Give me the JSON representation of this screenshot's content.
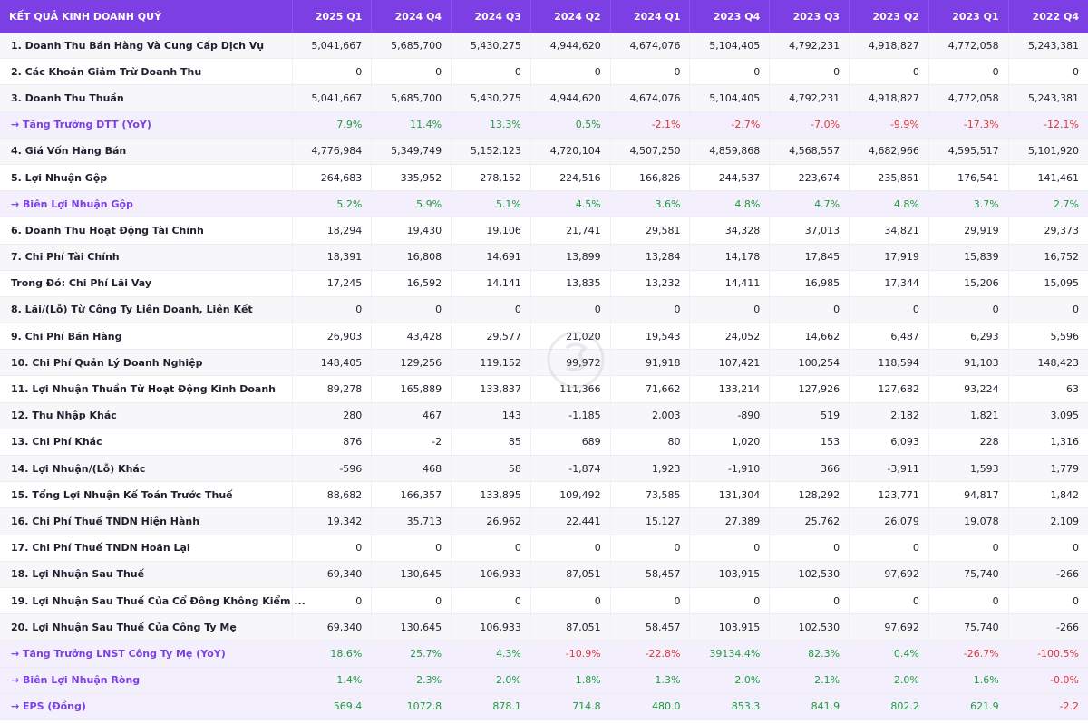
{
  "table": {
    "header_label": "KẾT QUẢ KINH DOANH QUÝ",
    "columns": [
      "2025 Q1",
      "2024 Q4",
      "2024 Q3",
      "2024 Q2",
      "2024 Q1",
      "2023 Q4",
      "2023 Q3",
      "2023 Q2",
      "2023 Q1",
      "2022 Q4"
    ],
    "rows": [
      {
        "label": "1. Doanh Thu Bán Hàng Và Cung Cấp Dịch Vụ",
        "type": "normal",
        "values": [
          "5,041,667",
          "5,685,700",
          "5,430,275",
          "4,944,620",
          "4,674,076",
          "5,104,405",
          "4,792,231",
          "4,918,827",
          "4,772,058",
          "5,243,381"
        ]
      },
      {
        "label": "2. Các Khoản Giảm Trừ Doanh Thu",
        "type": "normal",
        "values": [
          "0",
          "0",
          "0",
          "0",
          "0",
          "0",
          "0",
          "0",
          "0",
          "0"
        ]
      },
      {
        "label": "3. Doanh Thu Thuần",
        "type": "normal",
        "values": [
          "5,041,667",
          "5,685,700",
          "5,430,275",
          "4,944,620",
          "4,674,076",
          "5,104,405",
          "4,792,231",
          "4,918,827",
          "4,772,058",
          "5,243,381"
        ]
      },
      {
        "label": "→ Tăng Trưởng DTT (YoY)",
        "type": "ratio",
        "values": [
          "7.9%",
          "11.4%",
          "13.3%",
          "0.5%",
          "-2.1%",
          "-2.7%",
          "-7.0%",
          "-9.9%",
          "-17.3%",
          "-12.1%"
        ]
      },
      {
        "label": "4. Giá Vốn Hàng Bán",
        "type": "normal",
        "values": [
          "4,776,984",
          "5,349,749",
          "5,152,123",
          "4,720,104",
          "4,507,250",
          "4,859,868",
          "4,568,557",
          "4,682,966",
          "4,595,517",
          "5,101,920"
        ]
      },
      {
        "label": "5. Lợi Nhuận Gộp",
        "type": "normal",
        "values": [
          "264,683",
          "335,952",
          "278,152",
          "224,516",
          "166,826",
          "244,537",
          "223,674",
          "235,861",
          "176,541",
          "141,461"
        ]
      },
      {
        "label": "→ Biên Lợi Nhuận Gộp",
        "type": "ratio",
        "values": [
          "5.2%",
          "5.9%",
          "5.1%",
          "4.5%",
          "3.6%",
          "4.8%",
          "4.7%",
          "4.8%",
          "3.7%",
          "2.7%"
        ]
      },
      {
        "label": "6. Doanh Thu Hoạt Động Tài Chính",
        "type": "normal",
        "values": [
          "18,294",
          "19,430",
          "19,106",
          "21,741",
          "29,581",
          "34,328",
          "37,013",
          "34,821",
          "29,919",
          "29,373"
        ]
      },
      {
        "label": "7. Chi Phí Tài Chính",
        "type": "normal",
        "values": [
          "18,391",
          "16,808",
          "14,691",
          "13,899",
          "13,284",
          "14,178",
          "17,845",
          "17,919",
          "15,839",
          "16,752"
        ]
      },
      {
        "label": "Trong Đó: Chi Phí Lãi Vay",
        "type": "normal",
        "values": [
          "17,245",
          "16,592",
          "14,141",
          "13,835",
          "13,232",
          "14,411",
          "16,985",
          "17,344",
          "15,206",
          "15,095"
        ]
      },
      {
        "label": "8. Lãi/(Lỗ) Từ Công Ty Liên Doanh, Liên Kết",
        "type": "normal",
        "values": [
          "0",
          "0",
          "0",
          "0",
          "0",
          "0",
          "0",
          "0",
          "0",
          "0"
        ]
      },
      {
        "label": "9. Chi Phí Bán Hàng",
        "type": "normal",
        "values": [
          "26,903",
          "43,428",
          "29,577",
          "21,020",
          "19,543",
          "24,052",
          "14,662",
          "6,487",
          "6,293",
          "5,596"
        ]
      },
      {
        "label": "10. Chi Phí Quản Lý Doanh Nghiệp",
        "type": "normal",
        "values": [
          "148,405",
          "129,256",
          "119,152",
          "99,972",
          "91,918",
          "107,421",
          "100,254",
          "118,594",
          "91,103",
          "148,423"
        ]
      },
      {
        "label": "11. Lợi Nhuận Thuần Từ Hoạt Động Kinh Doanh",
        "type": "normal",
        "values": [
          "89,278",
          "165,889",
          "133,837",
          "111,366",
          "71,662",
          "133,214",
          "127,926",
          "127,682",
          "93,224",
          "63"
        ]
      },
      {
        "label": "12. Thu Nhập Khác",
        "type": "normal",
        "values": [
          "280",
          "467",
          "143",
          "-1,185",
          "2,003",
          "-890",
          "519",
          "2,182",
          "1,821",
          "3,095"
        ]
      },
      {
        "label": "13. Chi Phí Khác",
        "type": "normal",
        "values": [
          "876",
          "-2",
          "85",
          "689",
          "80",
          "1,020",
          "153",
          "6,093",
          "228",
          "1,316"
        ]
      },
      {
        "label": "14. Lợi Nhuận/(Lỗ) Khác",
        "type": "normal",
        "values": [
          "-596",
          "468",
          "58",
          "-1,874",
          "1,923",
          "-1,910",
          "366",
          "-3,911",
          "1,593",
          "1,779"
        ]
      },
      {
        "label": "15. Tổng Lợi Nhuận Kế Toán Trước Thuế",
        "type": "normal",
        "values": [
          "88,682",
          "166,357",
          "133,895",
          "109,492",
          "73,585",
          "131,304",
          "128,292",
          "123,771",
          "94,817",
          "1,842"
        ]
      },
      {
        "label": "16. Chi Phí Thuế TNDN Hiện Hành",
        "type": "normal",
        "values": [
          "19,342",
          "35,713",
          "26,962",
          "22,441",
          "15,127",
          "27,389",
          "25,762",
          "26,079",
          "19,078",
          "2,109"
        ]
      },
      {
        "label": "17. Chi Phí Thuế TNDN Hoãn Lại",
        "type": "normal",
        "values": [
          "0",
          "0",
          "0",
          "0",
          "0",
          "0",
          "0",
          "0",
          "0",
          "0"
        ]
      },
      {
        "label": "18. Lợi Nhuận Sau Thuế",
        "type": "normal",
        "values": [
          "69,340",
          "130,645",
          "106,933",
          "87,051",
          "58,457",
          "103,915",
          "102,530",
          "97,692",
          "75,740",
          "-266"
        ]
      },
      {
        "label": "19. Lợi Nhuận Sau Thuế Của Cổ Đông Không Kiểm ...",
        "type": "normal",
        "values": [
          "0",
          "0",
          "0",
          "0",
          "0",
          "0",
          "0",
          "0",
          "0",
          "0"
        ]
      },
      {
        "label": "20. Lợi Nhuận Sau Thuế Của Công Ty Mẹ",
        "type": "normal",
        "values": [
          "69,340",
          "130,645",
          "106,933",
          "87,051",
          "58,457",
          "103,915",
          "102,530",
          "97,692",
          "75,740",
          "-266"
        ]
      },
      {
        "label": "→ Tăng Trưởng LNST Công Ty Mẹ (YoY)",
        "type": "ratio",
        "values": [
          "18.6%",
          "25.7%",
          "4.3%",
          "-10.9%",
          "-22.8%",
          "39134.4%",
          "82.3%",
          "0.4%",
          "-26.7%",
          "-100.5%"
        ]
      },
      {
        "label": "→ Biên Lợi Nhuận Ròng",
        "type": "ratio",
        "values": [
          "1.4%",
          "2.3%",
          "2.0%",
          "1.8%",
          "1.3%",
          "2.0%",
          "2.1%",
          "2.0%",
          "1.6%",
          "-0.0%"
        ]
      },
      {
        "label": "→ EPS (Đồng)",
        "type": "ratio",
        "values": [
          "569.4",
          "1072.8",
          "878.1",
          "714.8",
          "480.0",
          "853.3",
          "841.9",
          "802.2",
          "621.9",
          "-2.2"
        ]
      }
    ],
    "colors": {
      "header_bg": "#7b3fe4",
      "positive": "#1e9b3c",
      "negative": "#e0353a",
      "ratio_label": "#7b3fe4"
    }
  }
}
